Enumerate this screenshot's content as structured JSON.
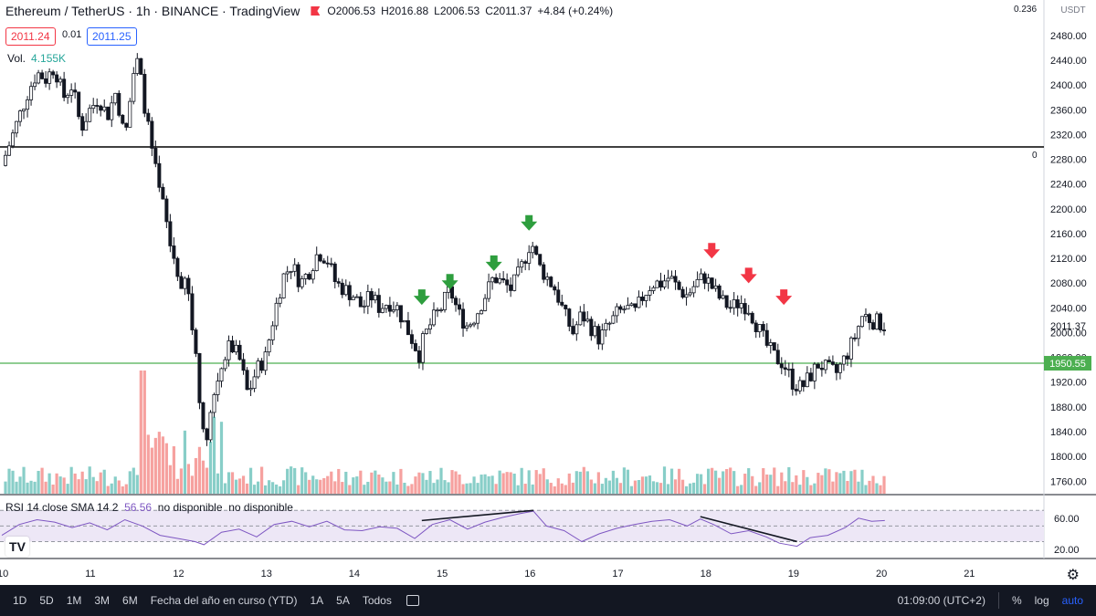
{
  "header": {
    "symbol": "Ethereum / TetherUS · 1h · BINANCE · TradingView",
    "open": "O2006.53",
    "high": "H2016.88",
    "low": "L2006.53",
    "close": "C2011.37",
    "change": "+4.84 (+0.24%)",
    "bid": "2011.24",
    "spread": "0.01",
    "ask": "2011.25",
    "vol_label": "Vol.",
    "vol_value": "4.155K"
  },
  "price_axis": {
    "currency": "USDT",
    "ticks": [
      "2480.00",
      "2440.00",
      "2400.00",
      "2360.00",
      "2320.00",
      "2280.00",
      "2240.00",
      "2200.00",
      "2160.00",
      "2120.00",
      "2080.00",
      "2040.00",
      "2000.00",
      "1960.00",
      "1920.00",
      "1880.00",
      "1840.00",
      "1800.00",
      "1760.00"
    ],
    "current_price": "2011.37",
    "support_label": "1950.55",
    "fib_label": "0.236",
    "fib_zero": "0"
  },
  "rsi": {
    "legend": "RSI 14 close SMA 14 2",
    "value": "56.56",
    "na1": "no disponible",
    "na2": "no disponible",
    "ticks": [
      "60.00",
      "20.00"
    ]
  },
  "time_axis": {
    "labels": [
      "10",
      "11",
      "12",
      "13",
      "14",
      "15",
      "16",
      "17",
      "18",
      "19",
      "20",
      "21"
    ]
  },
  "toolbar": {
    "ranges": [
      "1D",
      "5D",
      "1M",
      "3M",
      "6M",
      "Fecha del año en curso (YTD)",
      "1A",
      "5A",
      "Todos"
    ],
    "clock": "01:09:00 (UTC+2)",
    "percent": "%",
    "log": "log",
    "auto": "auto"
  },
  "colors": {
    "up": "#26a69a",
    "down": "#ef5350",
    "resistance": "#000000",
    "support": "#4caf50",
    "rsi_line": "#7e57c2",
    "rsi_band": "#ede7f6",
    "arrow_green": "#2e9e3e",
    "arrow_red": "#f23645"
  },
  "chart_data": {
    "type": "candlestick",
    "title": "Ethereum / TetherUS · 1h · BINANCE",
    "ylim": [
      1740,
      2500
    ],
    "horizontal_lines": [
      {
        "price": 2300,
        "color": "black",
        "label": "0"
      },
      {
        "price": 1950.55,
        "color": "green",
        "label": "1950.55"
      }
    ],
    "price_path": [
      [
        10.0,
        2270
      ],
      [
        10.1,
        2310
      ],
      [
        10.2,
        2350
      ],
      [
        10.3,
        2390
      ],
      [
        10.4,
        2420
      ],
      [
        10.5,
        2410
      ],
      [
        10.6,
        2430
      ],
      [
        10.7,
        2380
      ],
      [
        10.8,
        2400
      ],
      [
        10.9,
        2330
      ],
      [
        11.0,
        2360
      ],
      [
        11.1,
        2380
      ],
      [
        11.2,
        2350
      ],
      [
        11.3,
        2390
      ],
      [
        11.4,
        2310
      ],
      [
        11.5,
        2420
      ],
      [
        11.55,
        2440
      ],
      [
        11.6,
        2390
      ],
      [
        11.7,
        2300
      ],
      [
        11.8,
        2220
      ],
      [
        11.85,
        2200
      ],
      [
        11.9,
        2150
      ],
      [
        12.0,
        2100
      ],
      [
        12.05,
        2050
      ],
      [
        12.1,
        2100
      ],
      [
        12.15,
        2020
      ],
      [
        12.2,
        1980
      ],
      [
        12.25,
        1900
      ],
      [
        12.3,
        1820
      ],
      [
        12.35,
        1850
      ],
      [
        12.4,
        1890
      ],
      [
        12.5,
        1950
      ],
      [
        12.6,
        1980
      ],
      [
        12.7,
        1960
      ],
      [
        12.8,
        1900
      ],
      [
        12.9,
        1940
      ],
      [
        13.0,
        1960
      ],
      [
        13.1,
        2030
      ],
      [
        13.2,
        2090
      ],
      [
        13.3,
        2110
      ],
      [
        13.4,
        2080
      ],
      [
        13.5,
        2100
      ],
      [
        13.6,
        2130
      ],
      [
        13.7,
        2120
      ],
      [
        13.8,
        2080
      ],
      [
        13.9,
        2070
      ],
      [
        14.0,
        2060
      ],
      [
        14.1,
        2040
      ],
      [
        14.2,
        2060
      ],
      [
        14.3,
        2040
      ],
      [
        14.4,
        2050
      ],
      [
        14.5,
        2040
      ],
      [
        14.6,
        2010
      ],
      [
        14.7,
        1980
      ],
      [
        14.75,
        1965
      ],
      [
        14.8,
        1990
      ],
      [
        14.9,
        2020
      ],
      [
        15.0,
        2040
      ],
      [
        15.1,
        2070
      ],
      [
        15.2,
        2030
      ],
      [
        15.3,
        2010
      ],
      [
        15.4,
        2030
      ],
      [
        15.5,
        2060
      ],
      [
        15.6,
        2090
      ],
      [
        15.7,
        2080
      ],
      [
        15.8,
        2070
      ],
      [
        15.9,
        2100
      ],
      [
        16.0,
        2140
      ],
      [
        16.05,
        2140
      ],
      [
        16.1,
        2110
      ],
      [
        16.2,
        2090
      ],
      [
        16.3,
        2070
      ],
      [
        16.4,
        2030
      ],
      [
        16.5,
        2000
      ],
      [
        16.6,
        2030
      ],
      [
        16.7,
        2010
      ],
      [
        16.8,
        1990
      ],
      [
        16.9,
        2010
      ],
      [
        17.0,
        2030
      ],
      [
        17.1,
        2040
      ],
      [
        17.2,
        2030
      ],
      [
        17.3,
        2060
      ],
      [
        17.4,
        2080
      ],
      [
        17.5,
        2080
      ],
      [
        17.6,
        2090
      ],
      [
        17.7,
        2070
      ],
      [
        17.8,
        2060
      ],
      [
        17.9,
        2080
      ],
      [
        18.0,
        2090
      ],
      [
        18.1,
        2070
      ],
      [
        18.2,
        2050
      ],
      [
        18.3,
        2040
      ],
      [
        18.4,
        2050
      ],
      [
        18.5,
        2040
      ],
      [
        18.6,
        2010
      ],
      [
        18.7,
        1980
      ],
      [
        18.8,
        1960
      ],
      [
        18.9,
        1950
      ],
      [
        19.0,
        1920
      ],
      [
        19.1,
        1910
      ],
      [
        19.2,
        1930
      ],
      [
        19.3,
        1950
      ],
      [
        19.4,
        1940
      ],
      [
        19.5,
        1935
      ],
      [
        19.6,
        1960
      ],
      [
        19.7,
        1990
      ],
      [
        19.8,
        2030
      ],
      [
        19.9,
        2020
      ],
      [
        20.0,
        2015
      ],
      [
        20.05,
        2011
      ]
    ],
    "signals": [
      {
        "type": "buy",
        "x": 14.78,
        "price": 2055
      },
      {
        "type": "buy",
        "x": 15.1,
        "price": 2080
      },
      {
        "type": "buy",
        "x": 15.6,
        "price": 2110
      },
      {
        "type": "buy",
        "x": 16.0,
        "price": 2175
      },
      {
        "type": "sell",
        "x": 18.08,
        "price": 2130
      },
      {
        "type": "sell",
        "x": 18.5,
        "price": 2090
      },
      {
        "type": "sell",
        "x": 18.9,
        "price": 2055
      }
    ],
    "rsi_path": [
      [
        10.0,
        38
      ],
      [
        10.2,
        52
      ],
      [
        10.4,
        58
      ],
      [
        10.6,
        55
      ],
      [
        10.8,
        48
      ],
      [
        11.0,
        54
      ],
      [
        11.2,
        45
      ],
      [
        11.4,
        58
      ],
      [
        11.6,
        50
      ],
      [
        11.8,
        38
      ],
      [
        12.0,
        34
      ],
      [
        12.2,
        30
      ],
      [
        12.3,
        26
      ],
      [
        12.5,
        42
      ],
      [
        12.7,
        46
      ],
      [
        12.9,
        36
      ],
      [
        13.1,
        52
      ],
      [
        13.3,
        56
      ],
      [
        13.5,
        49
      ],
      [
        13.7,
        56
      ],
      [
        13.9,
        45
      ],
      [
        14.1,
        44
      ],
      [
        14.3,
        49
      ],
      [
        14.5,
        47
      ],
      [
        14.7,
        34
      ],
      [
        14.9,
        52
      ],
      [
        15.1,
        58
      ],
      [
        15.3,
        46
      ],
      [
        15.5,
        55
      ],
      [
        15.7,
        61
      ],
      [
        15.9,
        66
      ],
      [
        16.05,
        69
      ],
      [
        16.2,
        50
      ],
      [
        16.4,
        44
      ],
      [
        16.6,
        30
      ],
      [
        16.8,
        40
      ],
      [
        17.0,
        47
      ],
      [
        17.2,
        52
      ],
      [
        17.4,
        56
      ],
      [
        17.6,
        58
      ],
      [
        17.8,
        50
      ],
      [
        17.95,
        59
      ],
      [
        18.1,
        52
      ],
      [
        18.3,
        40
      ],
      [
        18.5,
        44
      ],
      [
        18.7,
        36
      ],
      [
        18.85,
        28
      ],
      [
        19.05,
        24
      ],
      [
        19.2,
        35
      ],
      [
        19.4,
        38
      ],
      [
        19.6,
        48
      ],
      [
        19.75,
        60
      ],
      [
        19.9,
        56
      ],
      [
        20.05,
        57
      ]
    ],
    "divergences": [
      {
        "series": "rsi",
        "from": [
          14.78,
          57
        ],
        "to": [
          16.05,
          70
        ]
      },
      {
        "series": "rsi",
        "from": [
          17.95,
          62
        ],
        "to": [
          19.05,
          30
        ]
      }
    ]
  }
}
